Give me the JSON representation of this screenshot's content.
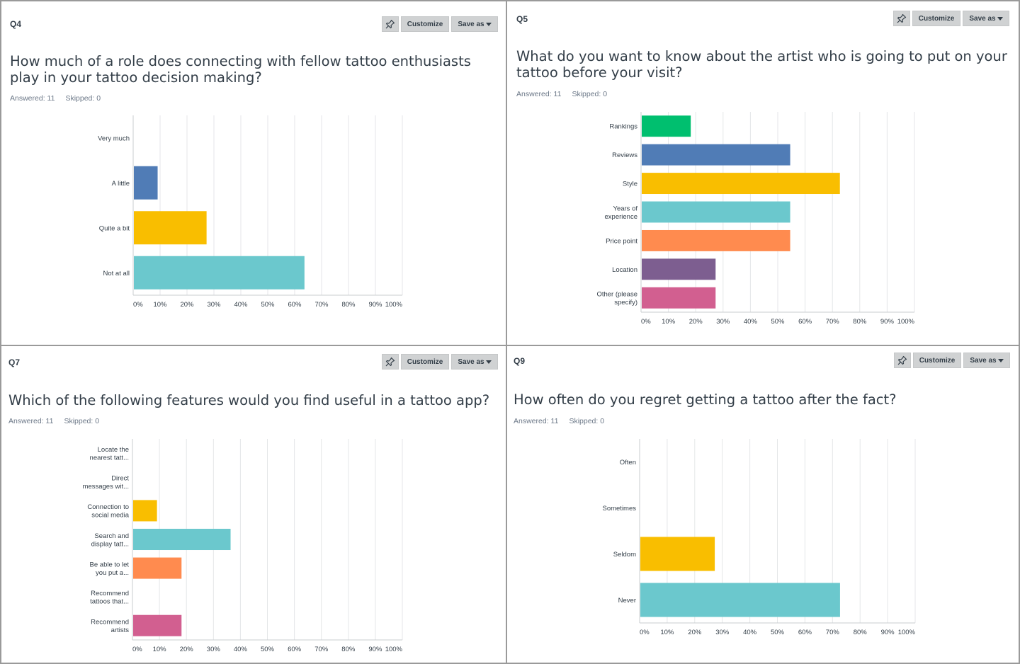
{
  "ui": {
    "pin_icon": "pin-icon",
    "customize_label": "Customize",
    "save_as_label": "Save as"
  },
  "panels": [
    {
      "id": "q4",
      "number": "Q4",
      "title": "How much of a role does connecting with fellow tattoo enthusiasts play in your tattoo decision making?",
      "answered": "Answered: 11",
      "skipped": "Skipped: 0"
    },
    {
      "id": "q5",
      "number": "Q5",
      "title": "What do you want to know about the artist who is going to put on your tattoo before your visit?",
      "answered": "Answered: 11",
      "skipped": "Skipped: 0"
    },
    {
      "id": "q7",
      "number": "Q7",
      "title": "Which of the following features would you find useful in a tattoo app?",
      "answered": "Answered: 11",
      "skipped": "Skipped: 0"
    },
    {
      "id": "q9",
      "number": "Q9",
      "title": "How often do you regret getting a tattoo after the fact?",
      "answered": "Answered: 11",
      "skipped": "Skipped: 0"
    }
  ],
  "chart_data": [
    {
      "type": "bar",
      "orientation": "horizontal",
      "categories": [
        [
          "Very much"
        ],
        [
          "A little"
        ],
        [
          "Quite a bit"
        ],
        [
          "Not at all"
        ]
      ],
      "values": [
        0,
        9.09,
        27.27,
        63.64
      ],
      "colors": [
        "#507cb6",
        "#507cb6",
        "#f9be00",
        "#6bc8cd"
      ],
      "xlim": [
        0,
        100
      ],
      "xticks": [
        "0%",
        "10%",
        "20%",
        "30%",
        "40%",
        "50%",
        "60%",
        "70%",
        "80%",
        "90%",
        "100%"
      ],
      "grid": true
    },
    {
      "type": "bar",
      "orientation": "horizontal",
      "categories": [
        [
          "Rankings"
        ],
        [
          "Reviews"
        ],
        [
          "Style"
        ],
        [
          "Years of",
          "experience"
        ],
        [
          "Price point"
        ],
        [
          "Location"
        ],
        [
          "Other (please",
          "specify)"
        ]
      ],
      "values": [
        18.18,
        54.55,
        72.73,
        54.55,
        54.55,
        27.27,
        27.27
      ],
      "colors": [
        "#00bf6f",
        "#507cb6",
        "#f9be00",
        "#6bc8cd",
        "#ff8b4f",
        "#7d5e90",
        "#d25f90"
      ],
      "xlim": [
        0,
        100
      ],
      "xticks": [
        "0%",
        "10%",
        "20%",
        "30%",
        "40%",
        "50%",
        "60%",
        "70%",
        "80%",
        "90%",
        "100%"
      ],
      "grid": true
    },
    {
      "type": "bar",
      "orientation": "horizontal",
      "categories": [
        [
          "Locate the",
          "nearest tatt..."
        ],
        [
          "Direct",
          "messages wit..."
        ],
        [
          "Connection to",
          "social media"
        ],
        [
          "Search and",
          "display tatt..."
        ],
        [
          "Be able to let",
          "you put a..."
        ],
        [
          "Recommend",
          "tattoos that..."
        ],
        [
          "Recommend",
          "artists"
        ]
      ],
      "values": [
        0,
        0,
        9.09,
        36.36,
        18.18,
        0,
        18.18
      ],
      "colors": [
        "#00bf6f",
        "#507cb6",
        "#f9be00",
        "#6bc8cd",
        "#ff8b4f",
        "#7d5e90",
        "#d25f90"
      ],
      "xlim": [
        0,
        100
      ],
      "xticks": [
        "0%",
        "10%",
        "20%",
        "30%",
        "40%",
        "50%",
        "60%",
        "70%",
        "80%",
        "90%",
        "100%"
      ],
      "grid": true
    },
    {
      "type": "bar",
      "orientation": "horizontal",
      "categories": [
        [
          "Often"
        ],
        [
          "Sometimes"
        ],
        [
          "Seldom"
        ],
        [
          "Never"
        ]
      ],
      "values": [
        0,
        0,
        27.27,
        72.73
      ],
      "colors": [
        "#00bf6f",
        "#507cb6",
        "#f9be00",
        "#6bc8cd"
      ],
      "xlim": [
        0,
        100
      ],
      "xticks": [
        "0%",
        "10%",
        "20%",
        "30%",
        "40%",
        "50%",
        "60%",
        "70%",
        "80%",
        "90%",
        "100%"
      ],
      "grid": true
    }
  ]
}
